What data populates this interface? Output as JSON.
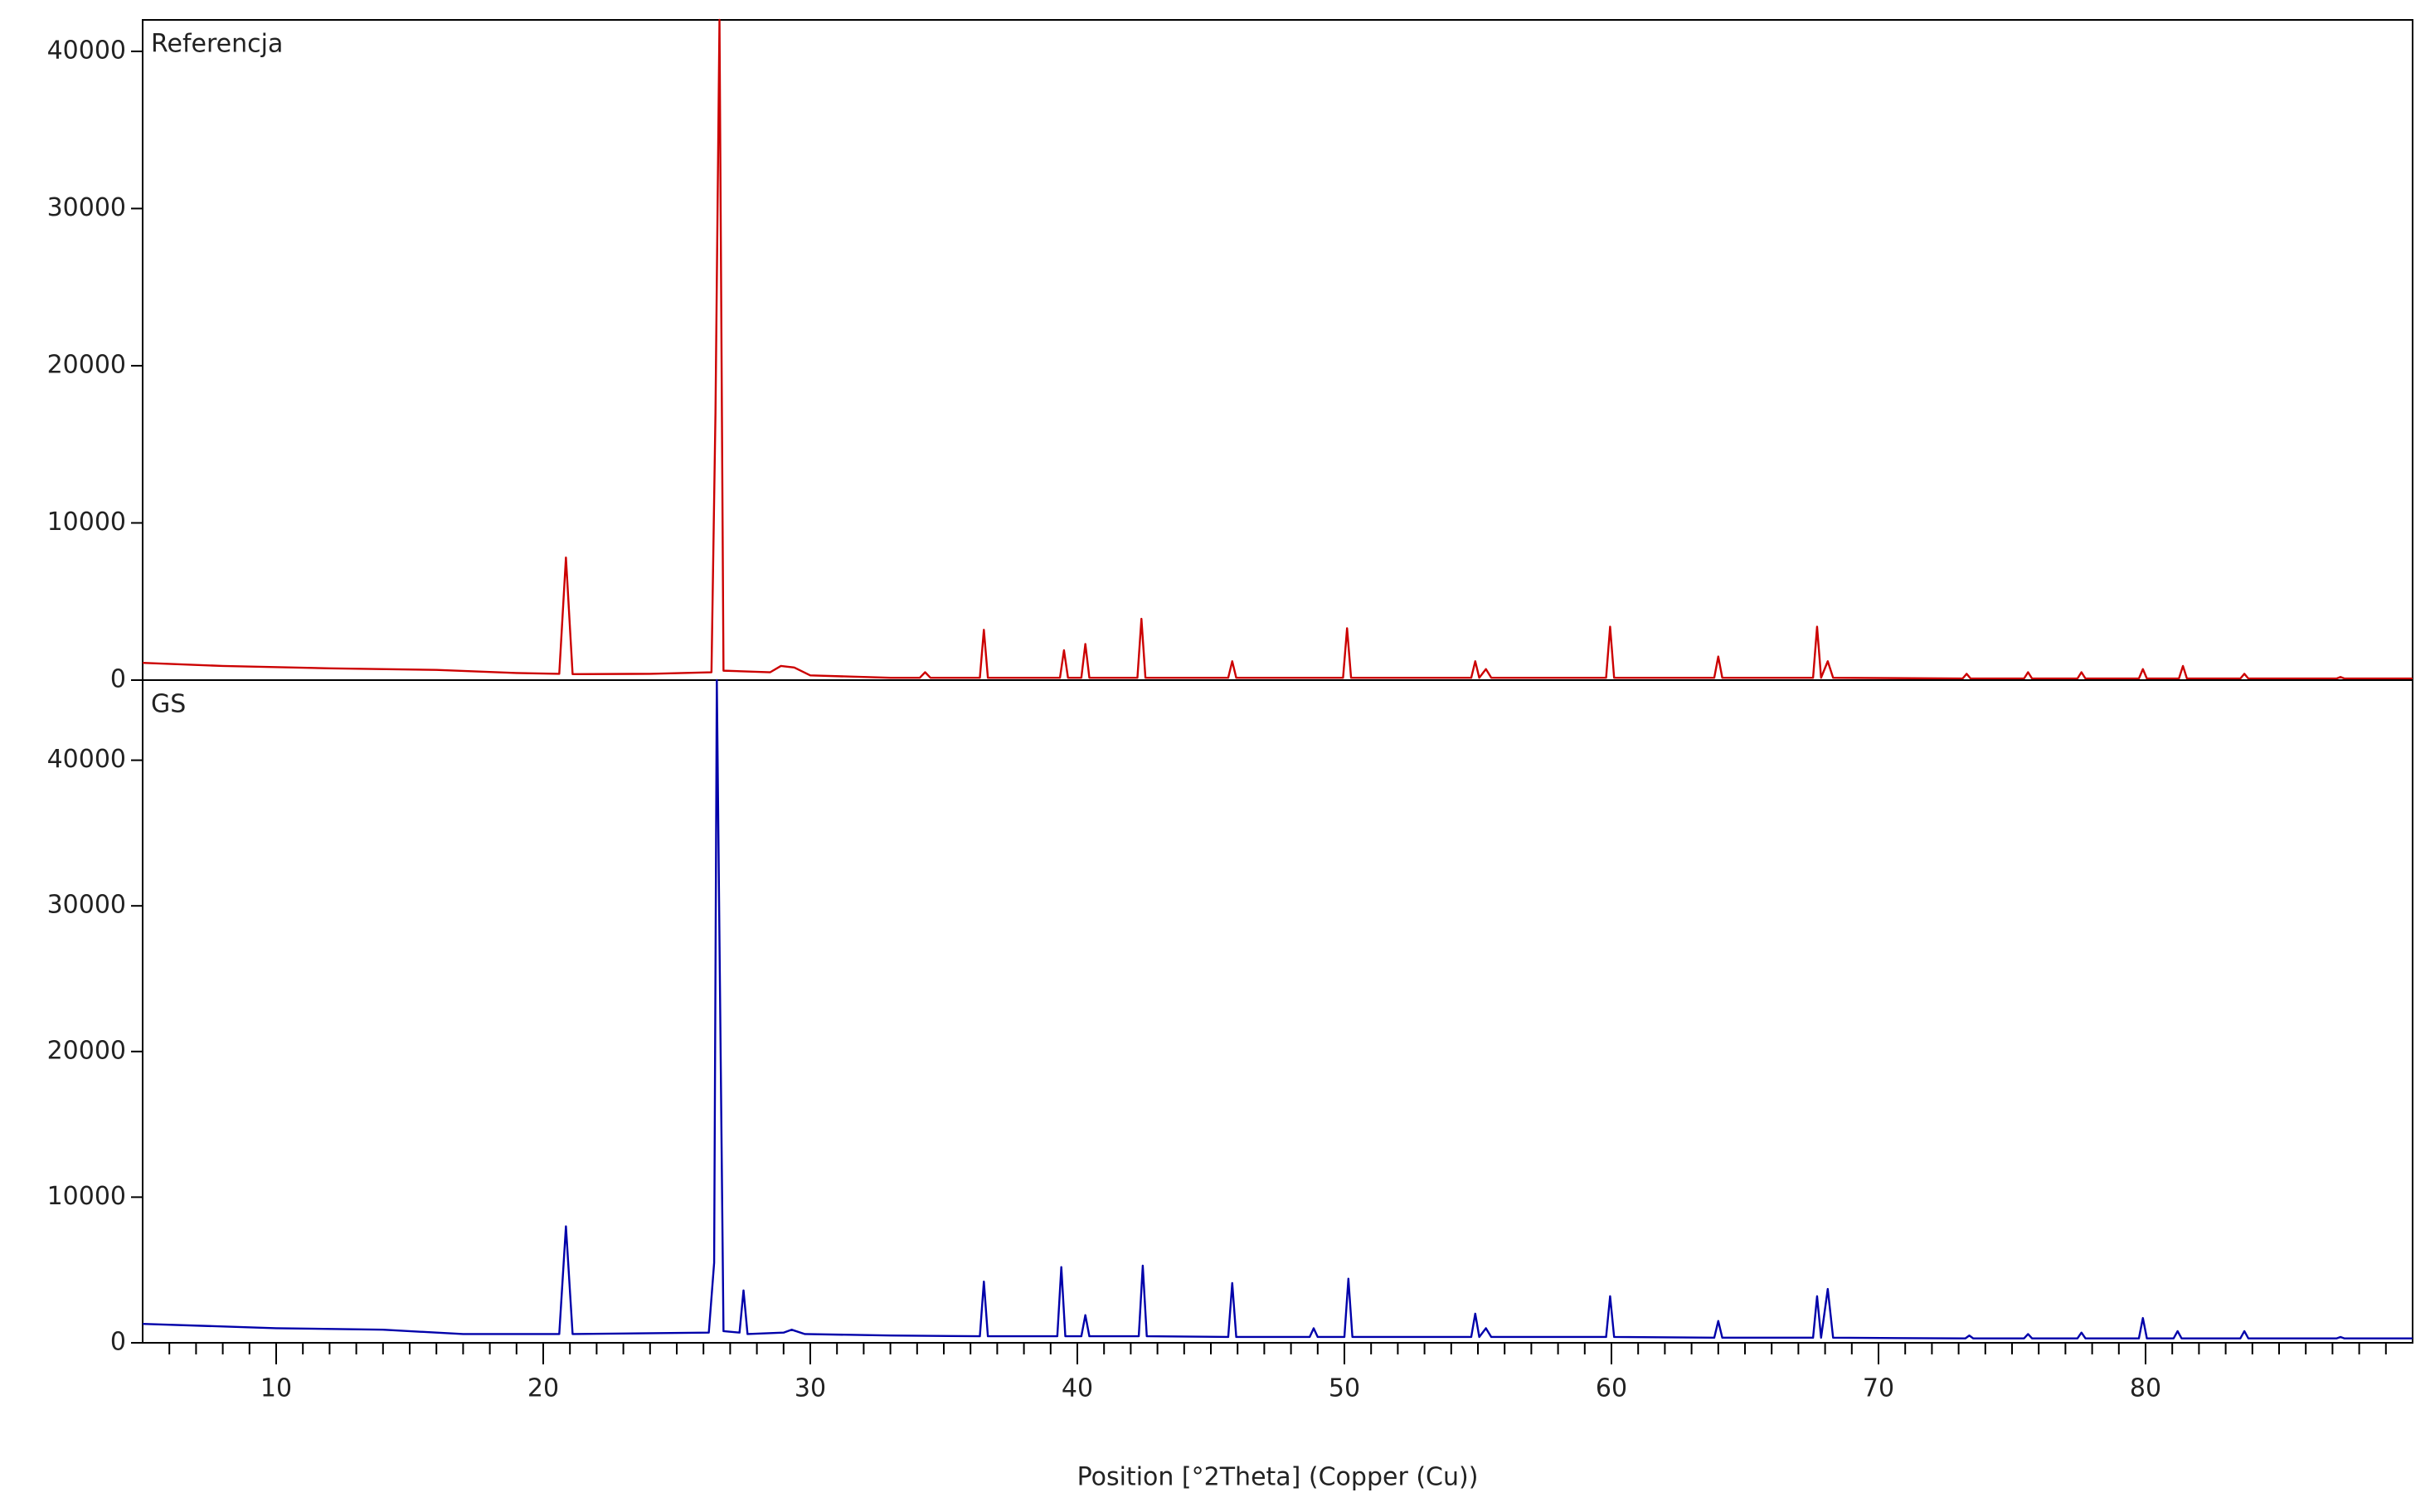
{
  "chart_data": [
    {
      "type": "line",
      "x": [
        5,
        8,
        12,
        16,
        19,
        20.6,
        20.85,
        21.1,
        24,
        26.3,
        26.45,
        26.6,
        26.75,
        28.5,
        28.9,
        29.4,
        30,
        33,
        34.1,
        34.3,
        34.5,
        36.35,
        36.5,
        36.65,
        39.35,
        39.5,
        39.65,
        40.15,
        40.3,
        40.45,
        42.25,
        42.4,
        42.55,
        45.65,
        45.8,
        45.95,
        49.95,
        50.1,
        50.25,
        54.75,
        54.9,
        55.05,
        55.3,
        55.5,
        59.8,
        59.95,
        60.1,
        63.85,
        64,
        64.15,
        67.55,
        67.7,
        67.85,
        68.1,
        68.3,
        73.15,
        73.3,
        73.45,
        75.45,
        75.6,
        75.75,
        77.45,
        77.6,
        77.75,
        79.75,
        79.9,
        80.05,
        81.25,
        81.4,
        81.55,
        83.55,
        83.7,
        83.85,
        87.15,
        87.3,
        87.45,
        90
      ],
      "series": [
        {
          "name": "Referencja",
          "color": "#cc0000",
          "values": [
            1100,
            900,
            750,
            650,
            450,
            400,
            7800,
            380,
            400,
            500,
            17000,
            42000,
            600,
            500,
            900,
            800,
            300,
            150,
            150,
            500,
            150,
            150,
            3200,
            150,
            150,
            1900,
            150,
            150,
            2300,
            150,
            150,
            3900,
            150,
            150,
            1200,
            150,
            150,
            3300,
            150,
            150,
            1200,
            150,
            700,
            150,
            150,
            3400,
            150,
            150,
            1500,
            150,
            150,
            3400,
            150,
            1200,
            150,
            100,
            400,
            100,
            100,
            500,
            100,
            100,
            500,
            100,
            100,
            700,
            100,
            100,
            900,
            100,
            100,
            400,
            100,
            100,
            200,
            100,
            100
          ]
        }
      ],
      "xlim": [
        5,
        90
      ],
      "ylim": [
        0,
        42000
      ],
      "yticks": [
        0,
        10000,
        20000,
        30000,
        40000
      ]
    },
    {
      "type": "line",
      "x_label": "Position [°2Theta] (Copper (Cu))",
      "x": [
        5,
        10,
        14,
        17,
        20.6,
        20.85,
        21.1,
        26.2,
        26.4,
        26.5,
        26.75,
        27.35,
        27.5,
        27.65,
        29,
        29.3,
        29.8,
        33,
        36.35,
        36.5,
        36.65,
        39.25,
        39.4,
        39.55,
        40.15,
        40.3,
        40.45,
        42.3,
        42.45,
        42.6,
        45.65,
        45.8,
        45.95,
        48.7,
        48.85,
        49,
        50,
        50.15,
        50.3,
        54.75,
        54.9,
        55.05,
        55.3,
        55.5,
        59.8,
        59.95,
        60.1,
        63.85,
        64,
        64.15,
        67.55,
        67.7,
        67.85,
        68.1,
        68.3,
        73.25,
        73.4,
        73.55,
        75.45,
        75.6,
        75.75,
        77.45,
        77.6,
        77.75,
        79.75,
        79.9,
        80.05,
        81.05,
        81.2,
        81.35,
        83.55,
        83.7,
        83.85,
        87.15,
        87.3,
        87.45,
        90
      ],
      "series": [
        {
          "name": "GS",
          "color": "#0000aa",
          "values": [
            1300,
            1000,
            900,
            600,
            600,
            8000,
            600,
            700,
            5500,
            45500,
            800,
            700,
            3600,
            600,
            700,
            900,
            600,
            500,
            450,
            4200,
            450,
            450,
            5200,
            450,
            450,
            1900,
            450,
            450,
            5300,
            450,
            400,
            4100,
            400,
            400,
            1000,
            400,
            400,
            4400,
            400,
            400,
            2000,
            400,
            1000,
            400,
            400,
            3200,
            400,
            350,
            1500,
            350,
            350,
            3200,
            350,
            3700,
            350,
            300,
            500,
            300,
            300,
            600,
            300,
            300,
            700,
            300,
            300,
            1700,
            300,
            300,
            800,
            300,
            300,
            800,
            300,
            300,
            400,
            300,
            300
          ]
        }
      ],
      "xlim": [
        5,
        90
      ],
      "ylim": [
        0,
        45500
      ],
      "yticks": [
        0,
        10000,
        20000,
        30000,
        40000
      ],
      "xticks": [
        10,
        20,
        30,
        40,
        50,
        60,
        70,
        80
      ],
      "xminorticks": [
        6,
        7,
        8,
        9,
        11,
        12,
        13,
        14,
        15,
        16,
        17,
        18,
        19,
        21,
        22,
        23,
        24,
        25,
        26,
        27,
        28,
        29,
        31,
        32,
        33,
        34,
        35,
        36,
        37,
        38,
        39,
        41,
        42,
        43,
        44,
        45,
        46,
        47,
        48,
        49,
        51,
        52,
        53,
        54,
        55,
        56,
        57,
        58,
        59,
        61,
        62,
        63,
        64,
        65,
        66,
        67,
        68,
        69,
        71,
        72,
        73,
        74,
        75,
        76,
        77,
        78,
        79,
        81,
        82,
        83,
        84,
        85,
        86,
        87,
        88,
        89
      ]
    }
  ]
}
